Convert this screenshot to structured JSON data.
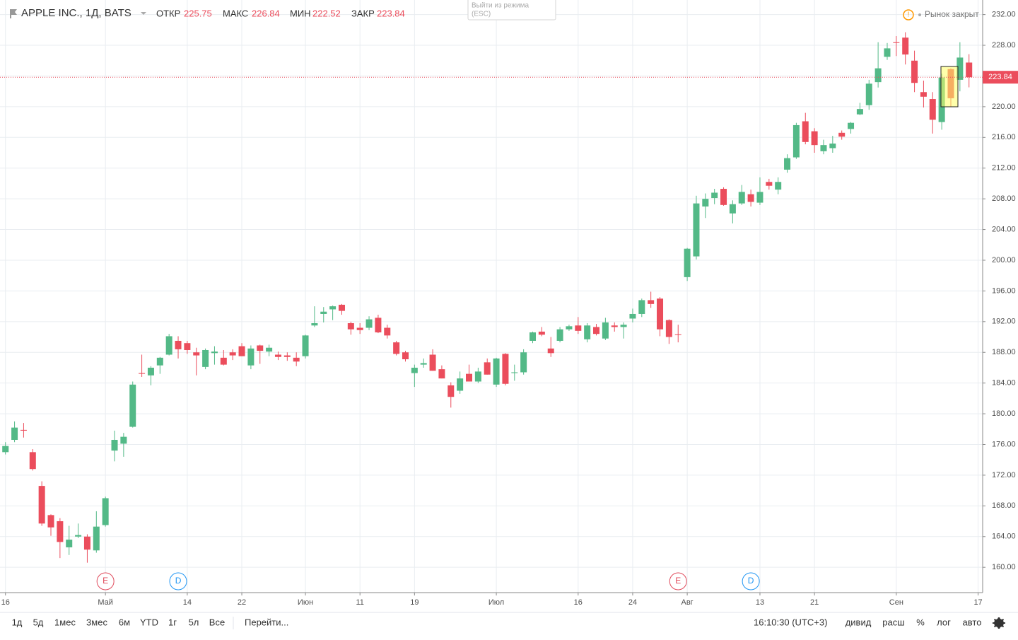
{
  "chart_data": {
    "type": "candlestick",
    "title": "APPLE INC., 1Д, BATS",
    "header": {
      "open_label": "ОТКР",
      "high_label": "МАКС",
      "low_label": "МИН",
      "close_label": "ЗАКР"
    },
    "market_status": "Рынок закрыт",
    "tooltip": [
      "Выйти из режима",
      "(ESC)"
    ],
    "up_color": "#53b987",
    "down_color": "#eb4d5c",
    "grid": true,
    "open": [
      175.0,
      176.6,
      177.9,
      175.0,
      170.6,
      166.8,
      166.0,
      162.6,
      164.0,
      164.0,
      162.2,
      165.5,
      175.2,
      176.1,
      178.3,
      185.3,
      185.0,
      186.3,
      187.7,
      189.5,
      189.2,
      188.0,
      186.1,
      187.9,
      187.3,
      188.0,
      188.8,
      186.3,
      188.9,
      188.1,
      187.7,
      187.6,
      187.3,
      187.5,
      191.5,
      193.0,
      193.6,
      194.2,
      191.8,
      191.2,
      191.2,
      192.5,
      191.2,
      189.3,
      188.0,
      185.3,
      186.4,
      187.7,
      185.8,
      183.7,
      183.0,
      185.2,
      184.2,
      186.7,
      183.8,
      187.8,
      185.3,
      185.4,
      189.5,
      190.7,
      188.5,
      189.5,
      191.0,
      191.5,
      189.7,
      191.3,
      189.8,
      191.5,
      191.3,
      192.4,
      193.0,
      194.8,
      195.0,
      192.2,
      190.35,
      197.8,
      200.5,
      207.0,
      208.1,
      209.3,
      206.1,
      207.4,
      208.6,
      207.5,
      210.2,
      209.2,
      211.8,
      213.4,
      218.1,
      216.8,
      214.2,
      214.6,
      216.6,
      217.1,
      219.0,
      220.2,
      223.2,
      226.5,
      228.4,
      229.0,
      226.0,
      221.9,
      221.0,
      218.0,
      224.9,
      223.5,
      225.75
    ],
    "high": [
      176.3,
      179.0,
      178.8,
      175.4,
      171.2,
      166.9,
      166.4,
      165.4,
      165.7,
      164.3,
      167.3,
      169.2,
      177.8,
      177.5,
      184.2,
      187.7,
      186.2,
      187.4,
      190.4,
      190.1,
      189.5,
      188.6,
      188.5,
      188.8,
      188.3,
      188.4,
      189.2,
      188.9,
      189.0,
      189.0,
      188.1,
      188.0,
      188.0,
      190.3,
      194.0,
      193.9,
      194.1,
      194.3,
      192.0,
      191.8,
      192.7,
      192.9,
      191.6,
      189.5,
      188.2,
      186.4,
      187.2,
      188.4,
      186.3,
      184.1,
      185.5,
      186.4,
      186.0,
      187.2,
      187.3,
      187.9,
      186.4,
      188.4,
      190.7,
      191.3,
      190.0,
      191.3,
      191.6,
      192.6,
      191.8,
      191.7,
      192.5,
      191.9,
      191.9,
      193.7,
      195.0,
      195.9,
      195.2,
      192.3,
      191.6,
      201.6,
      208.4,
      208.7,
      209.3,
      209.5,
      207.8,
      209.8,
      209.2,
      210.8,
      210.6,
      210.8,
      213.8,
      217.9,
      219.2,
      217.2,
      215.7,
      216.2,
      216.9,
      218.0,
      220.5,
      223.5,
      228.4,
      228.3,
      229.2,
      229.7,
      227.3,
      223.4,
      221.9,
      224.3,
      225.0,
      228.4,
      226.84
    ],
    "low": [
      174.7,
      176.3,
      176.9,
      172.6,
      165.4,
      164.1,
      161.2,
      161.6,
      163.8,
      160.6,
      161.9,
      165.3,
      173.8,
      174.4,
      178.2,
      184.8,
      183.7,
      185.2,
      187.6,
      187.2,
      187.8,
      185.0,
      185.8,
      186.4,
      186.3,
      187.0,
      187.5,
      185.8,
      186.5,
      187.5,
      187.0,
      186.9,
      186.2,
      187.2,
      191.3,
      191.9,
      192.2,
      192.9,
      190.3,
      190.4,
      190.9,
      190.5,
      189.8,
      187.6,
      186.8,
      183.5,
      186.0,
      185.6,
      184.6,
      180.8,
      182.6,
      184.2,
      184.0,
      185.1,
      183.5,
      183.7,
      184.3,
      185.1,
      189.2,
      190.1,
      187.4,
      189.3,
      190.8,
      190.4,
      189.3,
      190.2,
      189.6,
      190.7,
      189.8,
      191.9,
      192.6,
      193.8,
      190.1,
      189.1,
      189.3,
      197.3,
      200.1,
      205.5,
      207.3,
      207.1,
      204.8,
      207.2,
      207.0,
      207.2,
      209.2,
      208.6,
      211.4,
      213.2,
      215.1,
      214.0,
      213.8,
      214.0,
      215.7,
      216.5,
      218.9,
      219.6,
      222.5,
      226.1,
      226.6,
      225.5,
      221.9,
      219.9,
      216.5,
      217.0,
      220.0,
      222.0,
      222.52
    ],
    "close": [
      175.8,
      178.2,
      177.8,
      172.8,
      165.7,
      165.2,
      163.3,
      163.6,
      164.2,
      162.3,
      165.3,
      169.0,
      176.6,
      177.0,
      183.8,
      185.2,
      186.0,
      187.3,
      190.1,
      188.4,
      188.3,
      187.6,
      188.3,
      188.1,
      186.4,
      187.6,
      187.5,
      188.5,
      188.2,
      188.6,
      187.4,
      187.4,
      186.8,
      190.2,
      191.8,
      193.3,
      194.0,
      193.4,
      191.0,
      190.9,
      192.3,
      190.6,
      190.2,
      187.8,
      187.1,
      186.0,
      186.6,
      185.6,
      184.6,
      182.2,
      184.6,
      184.2,
      185.5,
      185.1,
      187.2,
      183.9,
      185.4,
      188.0,
      190.6,
      190.3,
      187.9,
      191.0,
      191.4,
      190.8,
      191.5,
      190.4,
      191.9,
      191.3,
      191.6,
      193.0,
      194.8,
      194.3,
      191.0,
      190.0,
      190.29,
      201.5,
      207.4,
      208.0,
      208.8,
      207.2,
      207.3,
      208.9,
      207.6,
      208.9,
      209.7,
      210.2,
      213.3,
      217.6,
      215.4,
      215.0,
      215.0,
      215.2,
      216.1,
      217.9,
      219.7,
      223.0,
      225.0,
      227.6,
      228.3,
      226.8,
      223.1,
      221.3,
      218.3,
      223.8,
      221.1,
      226.4,
      223.84
    ],
    "xlim": [
      -0.6,
      107.5
    ],
    "xticks": [
      {
        "value": 0,
        "label": "16"
      },
      {
        "value": 11,
        "label": "Май"
      },
      {
        "value": 20,
        "label": "14"
      },
      {
        "value": 26,
        "label": "22"
      },
      {
        "value": 33,
        "label": "Июн"
      },
      {
        "value": 39,
        "label": "11"
      },
      {
        "value": 45,
        "label": "19"
      },
      {
        "value": 54,
        "label": "Июл"
      },
      {
        "value": 63,
        "label": "16"
      },
      {
        "value": 69,
        "label": "24"
      },
      {
        "value": 75,
        "label": "Авг"
      },
      {
        "value": 83,
        "label": "13"
      },
      {
        "value": 89,
        "label": "21"
      },
      {
        "value": 98,
        "label": "Сен"
      },
      {
        "value": 107,
        "label": "17"
      }
    ],
    "ylim": [
      156.7,
      233.9
    ],
    "yticks": [
      {
        "value": 160,
        "label": "160.00"
      },
      {
        "value": 164,
        "label": "164.00"
      },
      {
        "value": 168,
        "label": "168.00"
      },
      {
        "value": 172,
        "label": "172.00"
      },
      {
        "value": 176,
        "label": "176.00"
      },
      {
        "value": 180,
        "label": "180.00"
      },
      {
        "value": 184,
        "label": "184.00"
      },
      {
        "value": 188,
        "label": "188.00"
      },
      {
        "value": 192,
        "label": "192.00"
      },
      {
        "value": 196,
        "label": "196.00"
      },
      {
        "value": 200,
        "label": "200.00"
      },
      {
        "value": 204,
        "label": "204.00"
      },
      {
        "value": 208,
        "label": "208.00"
      },
      {
        "value": 212,
        "label": "212.00"
      },
      {
        "value": 216,
        "label": "216.00"
      },
      {
        "value": 220,
        "label": "220.00"
      },
      {
        "value": 224,
        "label": "224.00"
      },
      {
        "value": 228,
        "label": "228.00"
      },
      {
        "value": 232,
        "label": "232.00"
      }
    ],
    "events": [
      {
        "x": 11,
        "label": "E",
        "color": "#e04b5c"
      },
      {
        "x": 19,
        "label": "D",
        "color": "#2196f3"
      },
      {
        "x": 74,
        "label": "E",
        "color": "#e04b5c"
      },
      {
        "x": 82,
        "label": "D",
        "color": "#2196f3"
      }
    ]
  },
  "toolbar": {
    "ranges": [
      "1д",
      "5д",
      "1мес",
      "3мес",
      "6м",
      "YTD",
      "1г",
      "5л",
      "Все"
    ],
    "goto": "Перейти...",
    "time": "16:10:30 (UTC+3)",
    "right": [
      "дивид",
      "расш",
      "%",
      "лог",
      "авто"
    ]
  }
}
